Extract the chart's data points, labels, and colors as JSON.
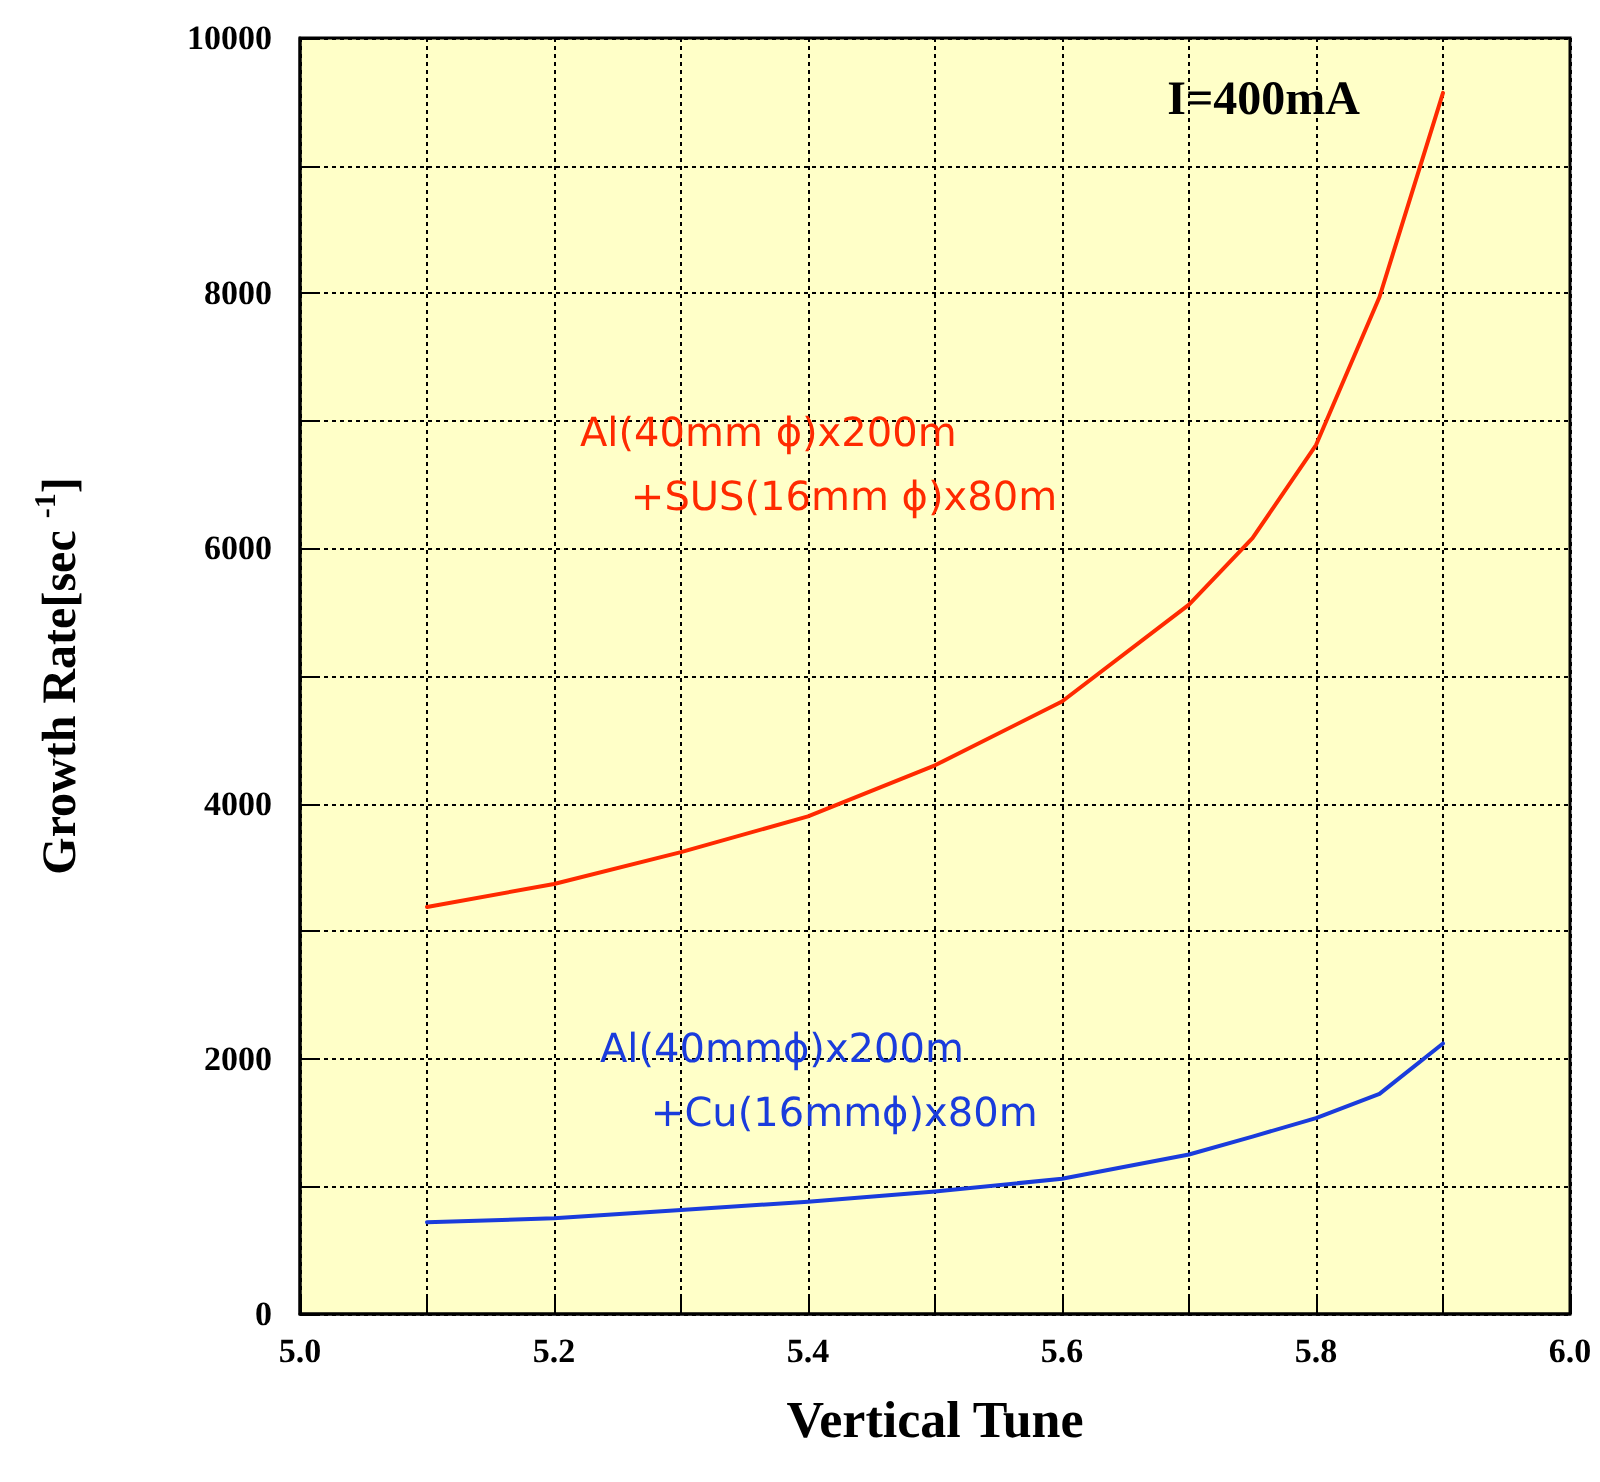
{
  "chart_data": {
    "type": "line",
    "xlabel": "Vertical Tune",
    "ylabel": "Growth Rate[sec $^{-1}$]",
    "annotations": [
      "I=400mA"
    ],
    "x": [
      5.1,
      5.2,
      5.3,
      5.4,
      5.5,
      5.6,
      5.7,
      5.75,
      5.8,
      5.85,
      5.9
    ],
    "series": [
      {
        "name": "Al(40mm ϕ)x200m\n    +SUS(16mm ϕ)x80m",
        "color": "#ff2a00",
        "values": [
          3190,
          3370,
          3620,
          3900,
          4300,
          4800,
          5560,
          6080,
          6810,
          7970,
          9570
        ]
      },
      {
        "name": "Al(40mmϕ)x200m\n    +Cu(16mmϕ)x80m",
        "color": "#1a3cdc",
        "values": [
          720,
          750,
          815,
          880,
          960,
          1060,
          1250,
          1390,
          1535,
          1725,
          2120
        ]
      }
    ],
    "xlim": [
      5.0,
      6.0
    ],
    "ylim": [
      0,
      10000
    ],
    "xticks": [
      {
        "value": 5.0,
        "label": "5.0"
      },
      {
        "value": 5.1,
        "label": null
      },
      5.2,
      {
        "value": 5.3,
        "label": null
      },
      5.4,
      {
        "value": 5.5,
        "label": null
      },
      5.6,
      {
        "value": 5.7,
        "label": null
      },
      5.8,
      {
        "value": 5.9,
        "label": null
      },
      {
        "value": 6.0,
        "label": "6.0"
      }
    ],
    "yticks": [
      0,
      {
        "value": 1000,
        "label": null
      },
      2000,
      {
        "value": 3000,
        "label": null
      },
      4000,
      {
        "value": 5000,
        "label": null
      },
      6000,
      {
        "value": 7000,
        "label": null
      },
      8000,
      {
        "value": 9000,
        "label": null
      },
      10000
    ],
    "grid": true,
    "legend": false,
    "marker": "none",
    "line_style": "solid"
  }
}
